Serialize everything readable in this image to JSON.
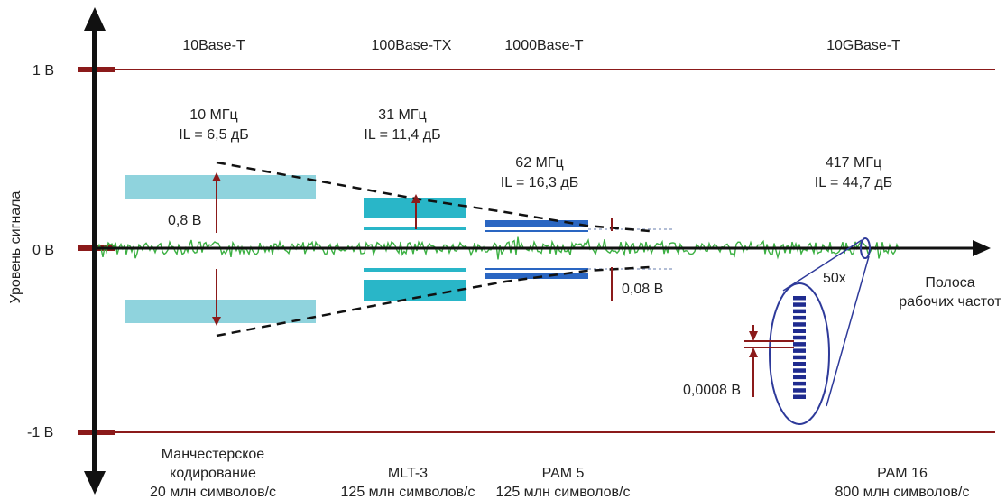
{
  "colors": {
    "level_line": "#8b1a1a",
    "axis": "#111111",
    "noise": "#3cb043",
    "band_10": "#8fd3dd",
    "band_100": "#29b6c8",
    "band_1000": "#2a66c2",
    "band_10g": "#1f2b8f",
    "ellipse": "#2e3a9a"
  },
  "axis": {
    "y_label": "Уровень сигнала",
    "x_label_line1": "Полоса",
    "x_label_line2": "рабочих частот",
    "levels": [
      {
        "label": "1 В",
        "value": 1
      },
      {
        "label": "0 В",
        "value": 0
      },
      {
        "label": "-1 В",
        "value": -1
      }
    ]
  },
  "standards": [
    {
      "name": "10Base-T",
      "freq": "10 МГц",
      "il": "IL = 6,5 дБ",
      "coding_line1": "Манчестерское",
      "coding_line2": "кодирование",
      "coding_line3": "20 млн символов/с"
    },
    {
      "name": "100Base-TX",
      "freq": "31 МГц",
      "il": "IL = 11,4 дБ",
      "coding_line1": "MLT-3",
      "coding_line2": "125 млн символов/с",
      "coding_line3": ""
    },
    {
      "name": "1000Base-T",
      "freq": "62 МГц",
      "il": "IL = 16,3 дБ",
      "coding_line1": "PAM 5",
      "coding_line2": "125 млн символов/с",
      "coding_line3": ""
    },
    {
      "name": "10GBase-T",
      "freq": "417 МГц",
      "il": "IL = 44,7 дБ",
      "coding_line1": "PAM 16",
      "coding_line2": "800 млн символов/с",
      "coding_line3": ""
    }
  ],
  "annotations": {
    "amp_10": "0,8 В",
    "amp_1000": "0,08 В",
    "amp_10g": "0,0008 В",
    "zoom": "50x"
  }
}
